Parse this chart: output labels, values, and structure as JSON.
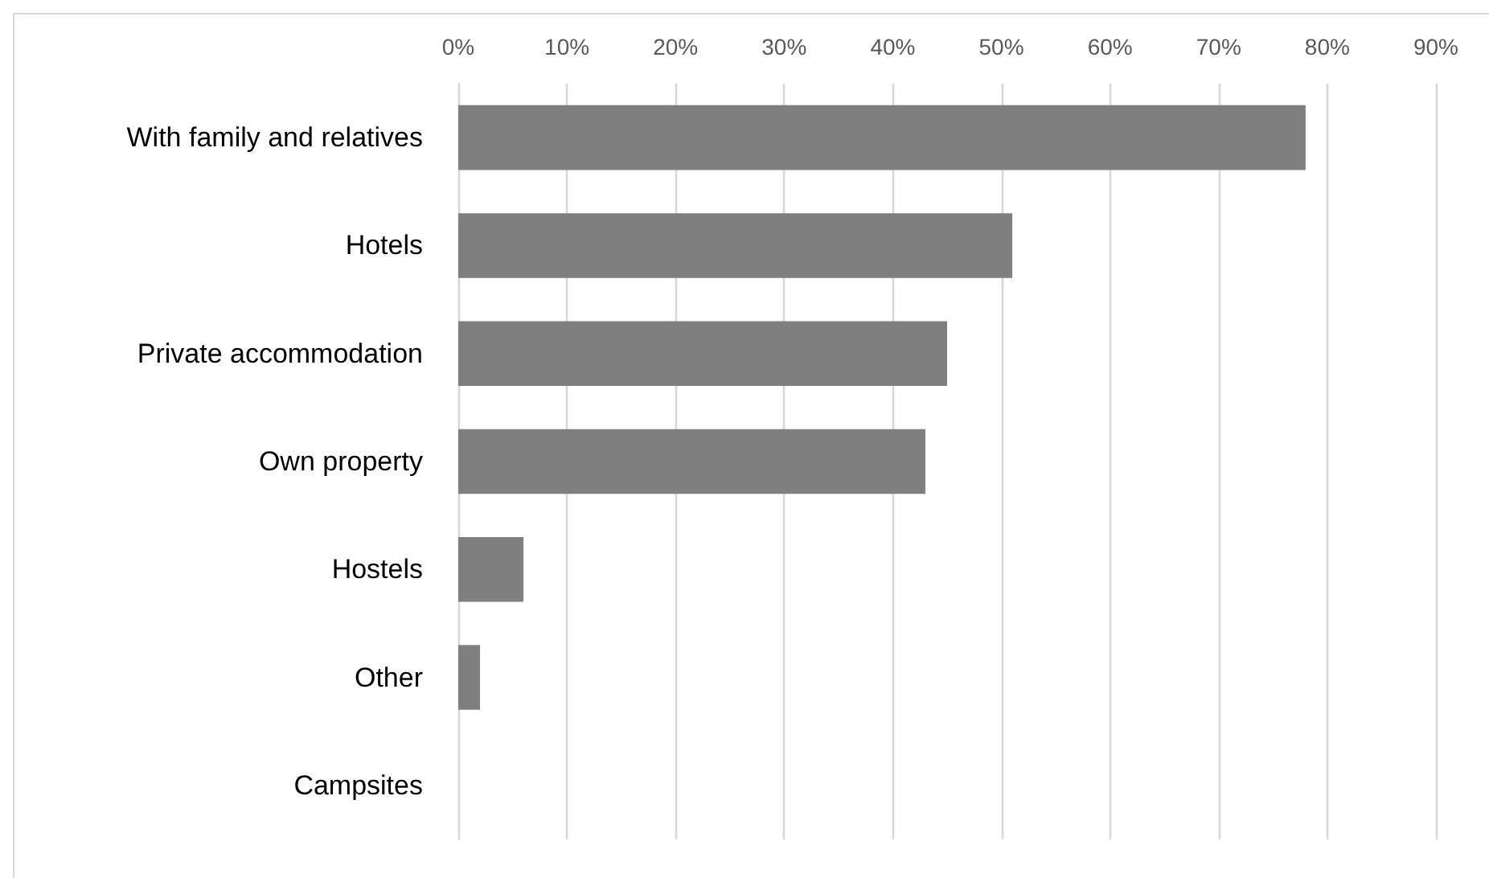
{
  "chart_data": {
    "type": "bar",
    "orientation": "horizontal",
    "categories": [
      "With family and relatives",
      "Hotels",
      "Private accommodation",
      "Own property",
      "Hostels",
      "Other",
      "Campsites"
    ],
    "values": [
      78,
      51,
      45,
      43,
      6,
      2,
      0
    ],
    "color": "#7f7f7f",
    "xlim": [
      0,
      90
    ],
    "xticks": [
      {
        "value": 0,
        "label": "0%"
      },
      {
        "value": 10,
        "label": "10%"
      },
      {
        "value": 20,
        "label": "20%"
      },
      {
        "value": 30,
        "label": "30%"
      },
      {
        "value": 40,
        "label": "40%"
      },
      {
        "value": 50,
        "label": "50%"
      },
      {
        "value": 60,
        "label": "60%"
      },
      {
        "value": 70,
        "label": "70%"
      },
      {
        "value": 80,
        "label": "80%"
      },
      {
        "value": 90,
        "label": "90%"
      }
    ],
    "grid": "x"
  }
}
